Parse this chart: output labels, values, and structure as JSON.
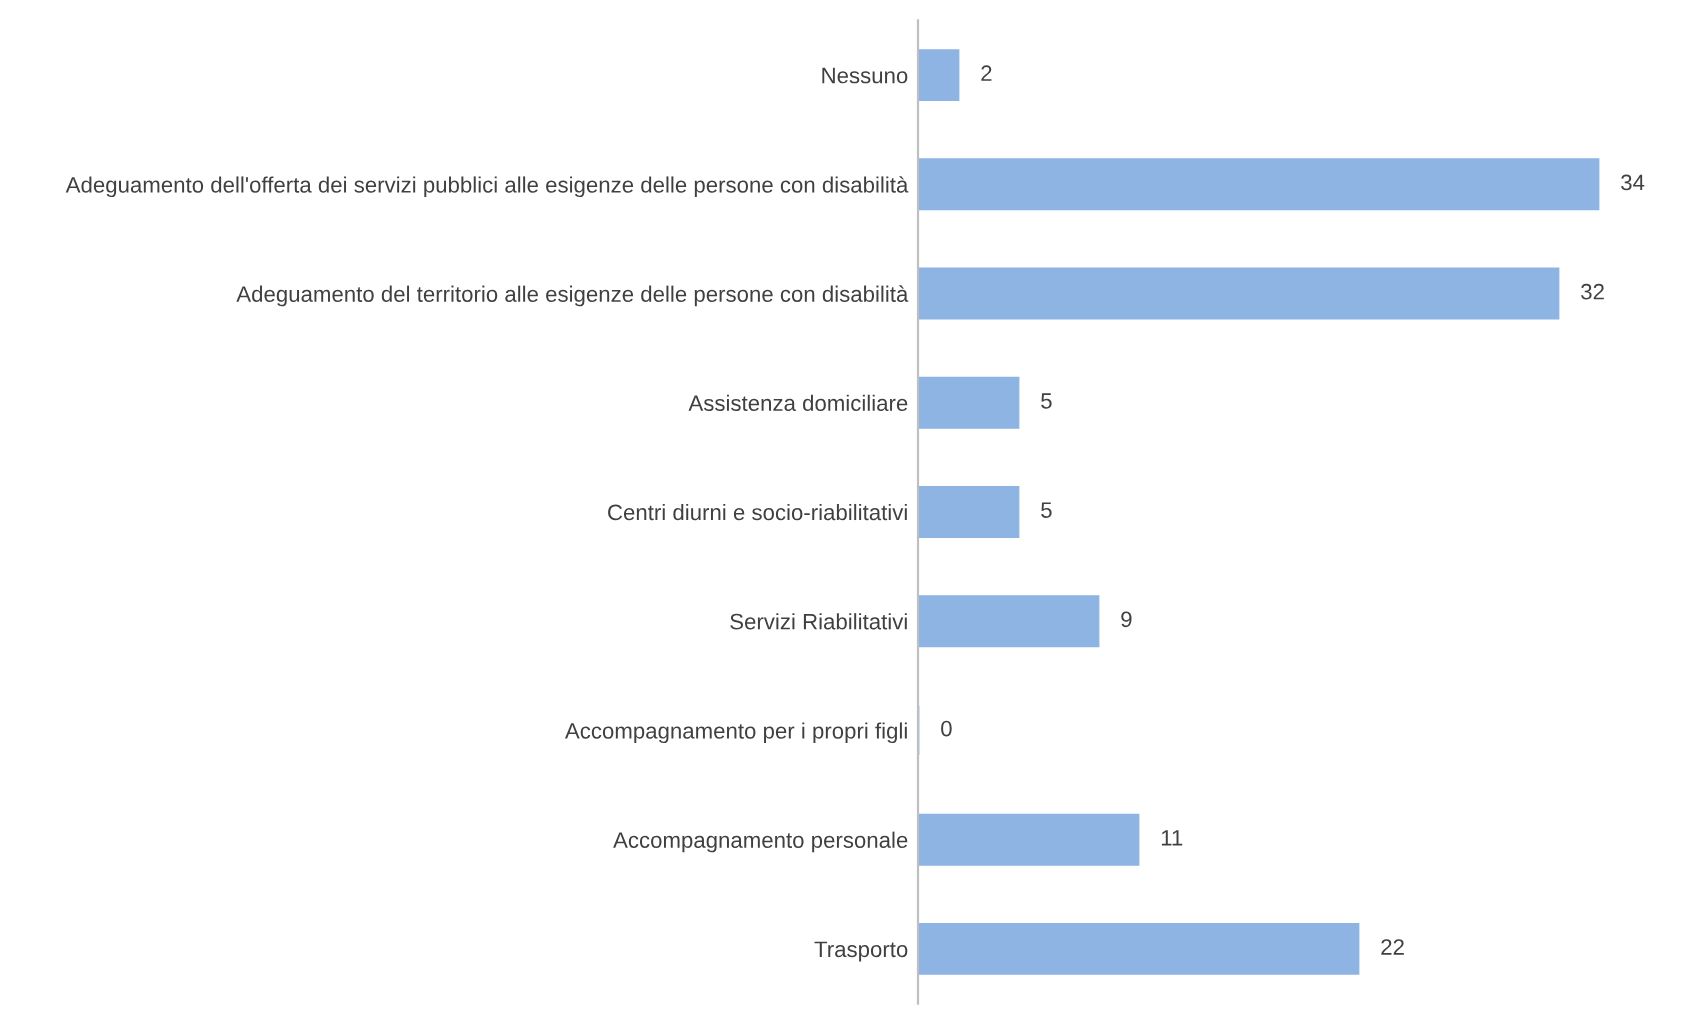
{
  "chart_data": {
    "type": "bar",
    "orientation": "horizontal",
    "categories": [
      "Nessuno",
      "Adeguamento dell'offerta dei servizi pubblici alle esigenze delle persone con disabilità",
      "Adeguamento del territorio alle esigenze delle persone con disabilità",
      "Assistenza domiciliare",
      "Centri diurni e socio-riabilitativi",
      "Servizi Riabilitativi",
      "Accompagnamento per i propri figli",
      "Accompagnamento personale",
      "Trasporto"
    ],
    "values": [
      2,
      34,
      32,
      5,
      5,
      9,
      0,
      11,
      22
    ],
    "color": "#8db4e2",
    "data_labels": true,
    "tick_labels": "y",
    "grid": false,
    "legend": false
  }
}
